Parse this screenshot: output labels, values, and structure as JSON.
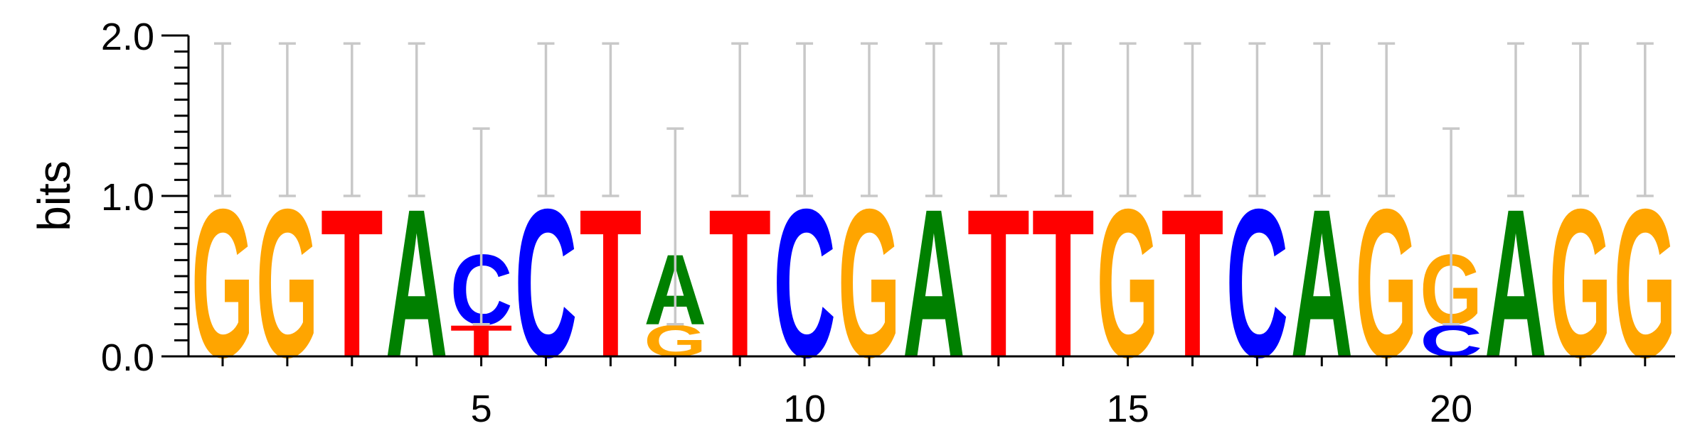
{
  "chart_data": {
    "type": "sequence-logo",
    "ylabel": "bits",
    "ylim": [
      0,
      2
    ],
    "y_ticks": [
      "0.0",
      "1.0",
      "2.0"
    ],
    "x_ticks": [
      "5",
      "10",
      "15",
      "20"
    ],
    "x_tick_positions": [
      5,
      10,
      15,
      20
    ],
    "num_positions": 23,
    "colors": {
      "A": "#008000",
      "C": "#0000ff",
      "G": "#ffa500",
      "T": "#ff0000"
    },
    "positions": [
      {
        "pos": 1,
        "letters": [
          {
            "base": "G",
            "bits": 0.95
          }
        ],
        "error": [
          1.0,
          1.95
        ]
      },
      {
        "pos": 2,
        "letters": [
          {
            "base": "G",
            "bits": 0.95
          }
        ],
        "error": [
          1.0,
          1.95
        ]
      },
      {
        "pos": 3,
        "letters": [
          {
            "base": "T",
            "bits": 0.95
          }
        ],
        "error": [
          1.0,
          1.95
        ]
      },
      {
        "pos": 4,
        "letters": [
          {
            "base": "A",
            "bits": 0.95
          }
        ],
        "error": [
          1.0,
          1.95
        ]
      },
      {
        "pos": 5,
        "letters": [
          {
            "base": "T",
            "bits": 0.2
          },
          {
            "base": "C",
            "bits": 0.45
          }
        ],
        "error": [
          0.2,
          1.42
        ]
      },
      {
        "pos": 6,
        "letters": [
          {
            "base": "C",
            "bits": 0.95
          }
        ],
        "error": [
          1.0,
          1.95
        ]
      },
      {
        "pos": 7,
        "letters": [
          {
            "base": "T",
            "bits": 0.95
          }
        ],
        "error": [
          1.0,
          1.95
        ]
      },
      {
        "pos": 8,
        "letters": [
          {
            "base": "G",
            "bits": 0.2
          },
          {
            "base": "A",
            "bits": 0.45
          }
        ],
        "error": [
          0.2,
          1.42
        ]
      },
      {
        "pos": 9,
        "letters": [
          {
            "base": "T",
            "bits": 0.95
          }
        ],
        "error": [
          1.0,
          1.95
        ]
      },
      {
        "pos": 10,
        "letters": [
          {
            "base": "C",
            "bits": 0.95
          }
        ],
        "error": [
          1.0,
          1.95
        ]
      },
      {
        "pos": 11,
        "letters": [
          {
            "base": "G",
            "bits": 0.95
          }
        ],
        "error": [
          1.0,
          1.95
        ]
      },
      {
        "pos": 12,
        "letters": [
          {
            "base": "A",
            "bits": 0.95
          }
        ],
        "error": [
          1.0,
          1.95
        ]
      },
      {
        "pos": 13,
        "letters": [
          {
            "base": "T",
            "bits": 0.95
          }
        ],
        "error": [
          1.0,
          1.95
        ]
      },
      {
        "pos": 14,
        "letters": [
          {
            "base": "T",
            "bits": 0.95
          }
        ],
        "error": [
          1.0,
          1.95
        ]
      },
      {
        "pos": 15,
        "letters": [
          {
            "base": "G",
            "bits": 0.95
          }
        ],
        "error": [
          1.0,
          1.95
        ]
      },
      {
        "pos": 16,
        "letters": [
          {
            "base": "T",
            "bits": 0.95
          }
        ],
        "error": [
          1.0,
          1.95
        ]
      },
      {
        "pos": 17,
        "letters": [
          {
            "base": "C",
            "bits": 0.95
          }
        ],
        "error": [
          1.0,
          1.95
        ]
      },
      {
        "pos": 18,
        "letters": [
          {
            "base": "A",
            "bits": 0.95
          }
        ],
        "error": [
          1.0,
          1.95
        ]
      },
      {
        "pos": 19,
        "letters": [
          {
            "base": "G",
            "bits": 0.95
          }
        ],
        "error": [
          1.0,
          1.95
        ]
      },
      {
        "pos": 20,
        "letters": [
          {
            "base": "C",
            "bits": 0.2
          },
          {
            "base": "G",
            "bits": 0.45
          }
        ],
        "error": [
          0.2,
          1.42
        ]
      },
      {
        "pos": 21,
        "letters": [
          {
            "base": "A",
            "bits": 0.95
          }
        ],
        "error": [
          1.0,
          1.95
        ]
      },
      {
        "pos": 22,
        "letters": [
          {
            "base": "G",
            "bits": 0.95
          }
        ],
        "error": [
          1.0,
          1.95
        ]
      },
      {
        "pos": 23,
        "letters": [
          {
            "base": "G",
            "bits": 0.95
          }
        ],
        "error": [
          1.0,
          1.95
        ]
      }
    ]
  }
}
